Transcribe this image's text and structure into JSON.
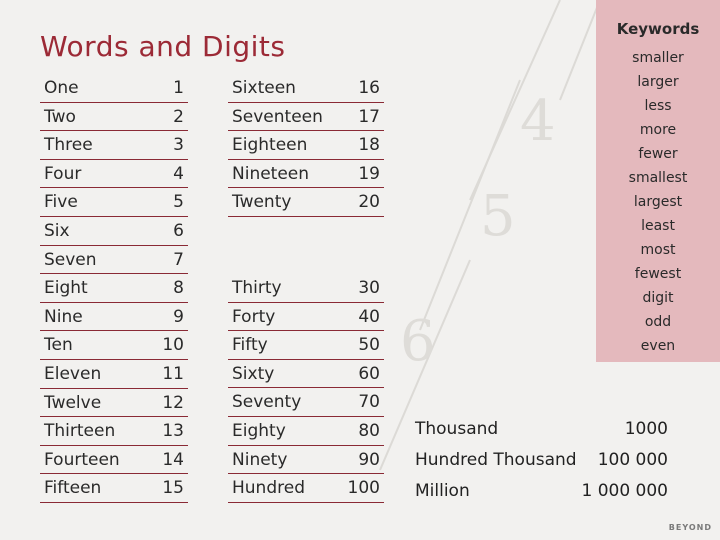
{
  "title": "Words and Digits",
  "col1": [
    {
      "word": "One",
      "digit": "1"
    },
    {
      "word": "Two",
      "digit": "2"
    },
    {
      "word": "Three",
      "digit": "3"
    },
    {
      "word": "Four",
      "digit": "4"
    },
    {
      "word": "Five",
      "digit": "5"
    },
    {
      "word": "Six",
      "digit": "6"
    },
    {
      "word": "Seven",
      "digit": "7"
    },
    {
      "word": "Eight",
      "digit": "8"
    },
    {
      "word": "Nine",
      "digit": "9"
    },
    {
      "word": "Ten",
      "digit": "10"
    },
    {
      "word": "Eleven",
      "digit": "11"
    },
    {
      "word": "Twelve",
      "digit": "12"
    },
    {
      "word": "Thirteen",
      "digit": "13"
    },
    {
      "word": "Fourteen",
      "digit": "14"
    },
    {
      "word": "Fifteen",
      "digit": "15"
    }
  ],
  "col2": [
    {
      "word": "Sixteen",
      "digit": "16"
    },
    {
      "word": "Seventeen",
      "digit": "17"
    },
    {
      "word": "Eighteen",
      "digit": "18"
    },
    {
      "word": "Nineteen",
      "digit": "19"
    },
    {
      "word": "Twenty",
      "digit": "20"
    }
  ],
  "col3": [
    {
      "word": "Thirty",
      "digit": "30"
    },
    {
      "word": "Forty",
      "digit": "40"
    },
    {
      "word": "Fifty",
      "digit": "50"
    },
    {
      "word": "Sixty",
      "digit": "60"
    },
    {
      "word": "Seventy",
      "digit": "70"
    },
    {
      "word": "Eighty",
      "digit": "80"
    },
    {
      "word": "Ninety",
      "digit": "90"
    },
    {
      "word": "Hundred",
      "digit": "100"
    }
  ],
  "keywords": {
    "title": "Keywords",
    "items": [
      "smaller",
      "larger",
      "less",
      "more",
      "fewer",
      "smallest",
      "largest",
      "least",
      "most",
      "fewest",
      "digit",
      "odd",
      "even"
    ]
  },
  "big_numbers": [
    {
      "word": "Thousand",
      "digit": "1000"
    },
    {
      "word": "Hundred Thousand",
      "digit": "100 000"
    },
    {
      "word": "Million",
      "digit": "1 000 000"
    }
  ],
  "brand": "BEYOND",
  "colors": {
    "accent": "#9c2a36",
    "keywords_bg": "#e4b9bd",
    "background": "#f2f1ef"
  }
}
